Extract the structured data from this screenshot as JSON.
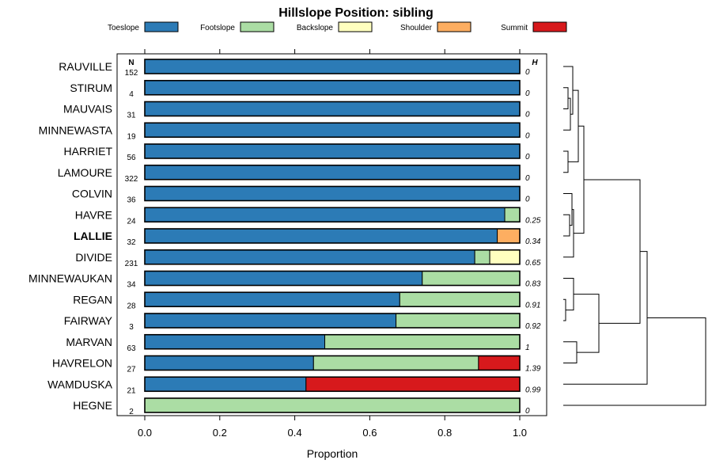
{
  "chart_data": {
    "type": "bar",
    "orientation": "horizontal",
    "stacked": true,
    "title": "Hillslope Position: sibling",
    "xlabel": "Proportion",
    "ylabel": "",
    "xlim": [
      0,
      1
    ],
    "x_ticks": [
      "0.0",
      "0.2",
      "0.4",
      "0.6",
      "0.8",
      "1.0"
    ],
    "n_header": "N",
    "h_header": "H",
    "highlight": "LALLIE",
    "legend": {
      "position": "top",
      "entries": [
        {
          "name": "Toeslope",
          "color": "#2C7BB6"
        },
        {
          "name": "Footslope",
          "color": "#ABDDA4"
        },
        {
          "name": "Backslope",
          "color": "#FFFFBF"
        },
        {
          "name": "Shoulder",
          "color": "#FDAE61"
        },
        {
          "name": "Summit",
          "color": "#D7191C"
        }
      ]
    },
    "categories": [
      "RAUVILLE",
      "STIRUM",
      "MAUVAIS",
      "MINNEWASTA",
      "HARRIET",
      "LAMOURE",
      "COLVIN",
      "HAVRE",
      "LALLIE",
      "DIVIDE",
      "MINNEWAUKAN",
      "REGAN",
      "FAIRWAY",
      "MARVAN",
      "HAVRELON",
      "WAMDUSKA",
      "HEGNE"
    ],
    "n": [
      "152",
      "4",
      "31",
      "19",
      "56",
      "322",
      "36",
      "24",
      "32",
      "231",
      "34",
      "28",
      "3",
      "63",
      "27",
      "21",
      "2"
    ],
    "h": [
      "0",
      "0",
      "0",
      "0",
      "0",
      "0",
      "0",
      "0.25",
      "0.34",
      "0.65",
      "0.83",
      "0.91",
      "0.92",
      "1",
      "1.39",
      "0.99",
      "0"
    ],
    "series": [
      {
        "name": "Toeslope",
        "values": [
          1,
          1,
          1,
          1,
          1,
          1,
          1,
          0.96,
          0.94,
          0.88,
          0.74,
          0.68,
          0.67,
          0.48,
          0.45,
          0.43,
          0
        ]
      },
      {
        "name": "Footslope",
        "values": [
          0,
          0,
          0,
          0,
          0,
          0,
          0,
          0.04,
          0,
          0.04,
          0.26,
          0.32,
          0.33,
          0.52,
          0.44,
          0,
          1
        ]
      },
      {
        "name": "Backslope",
        "values": [
          0,
          0,
          0,
          0,
          0,
          0,
          0,
          0,
          0,
          0.08,
          0,
          0,
          0,
          0,
          0,
          0,
          0
        ]
      },
      {
        "name": "Shoulder",
        "values": [
          0,
          0,
          0,
          0,
          0,
          0,
          0,
          0,
          0.06,
          0,
          0,
          0,
          0,
          0,
          0,
          0,
          0
        ]
      },
      {
        "name": "Summit",
        "values": [
          0,
          0,
          0,
          0,
          0,
          0,
          0,
          0,
          0,
          0,
          0,
          0,
          0,
          0,
          0.11,
          0.57,
          0
        ]
      }
    ],
    "dendrogram": true
  }
}
